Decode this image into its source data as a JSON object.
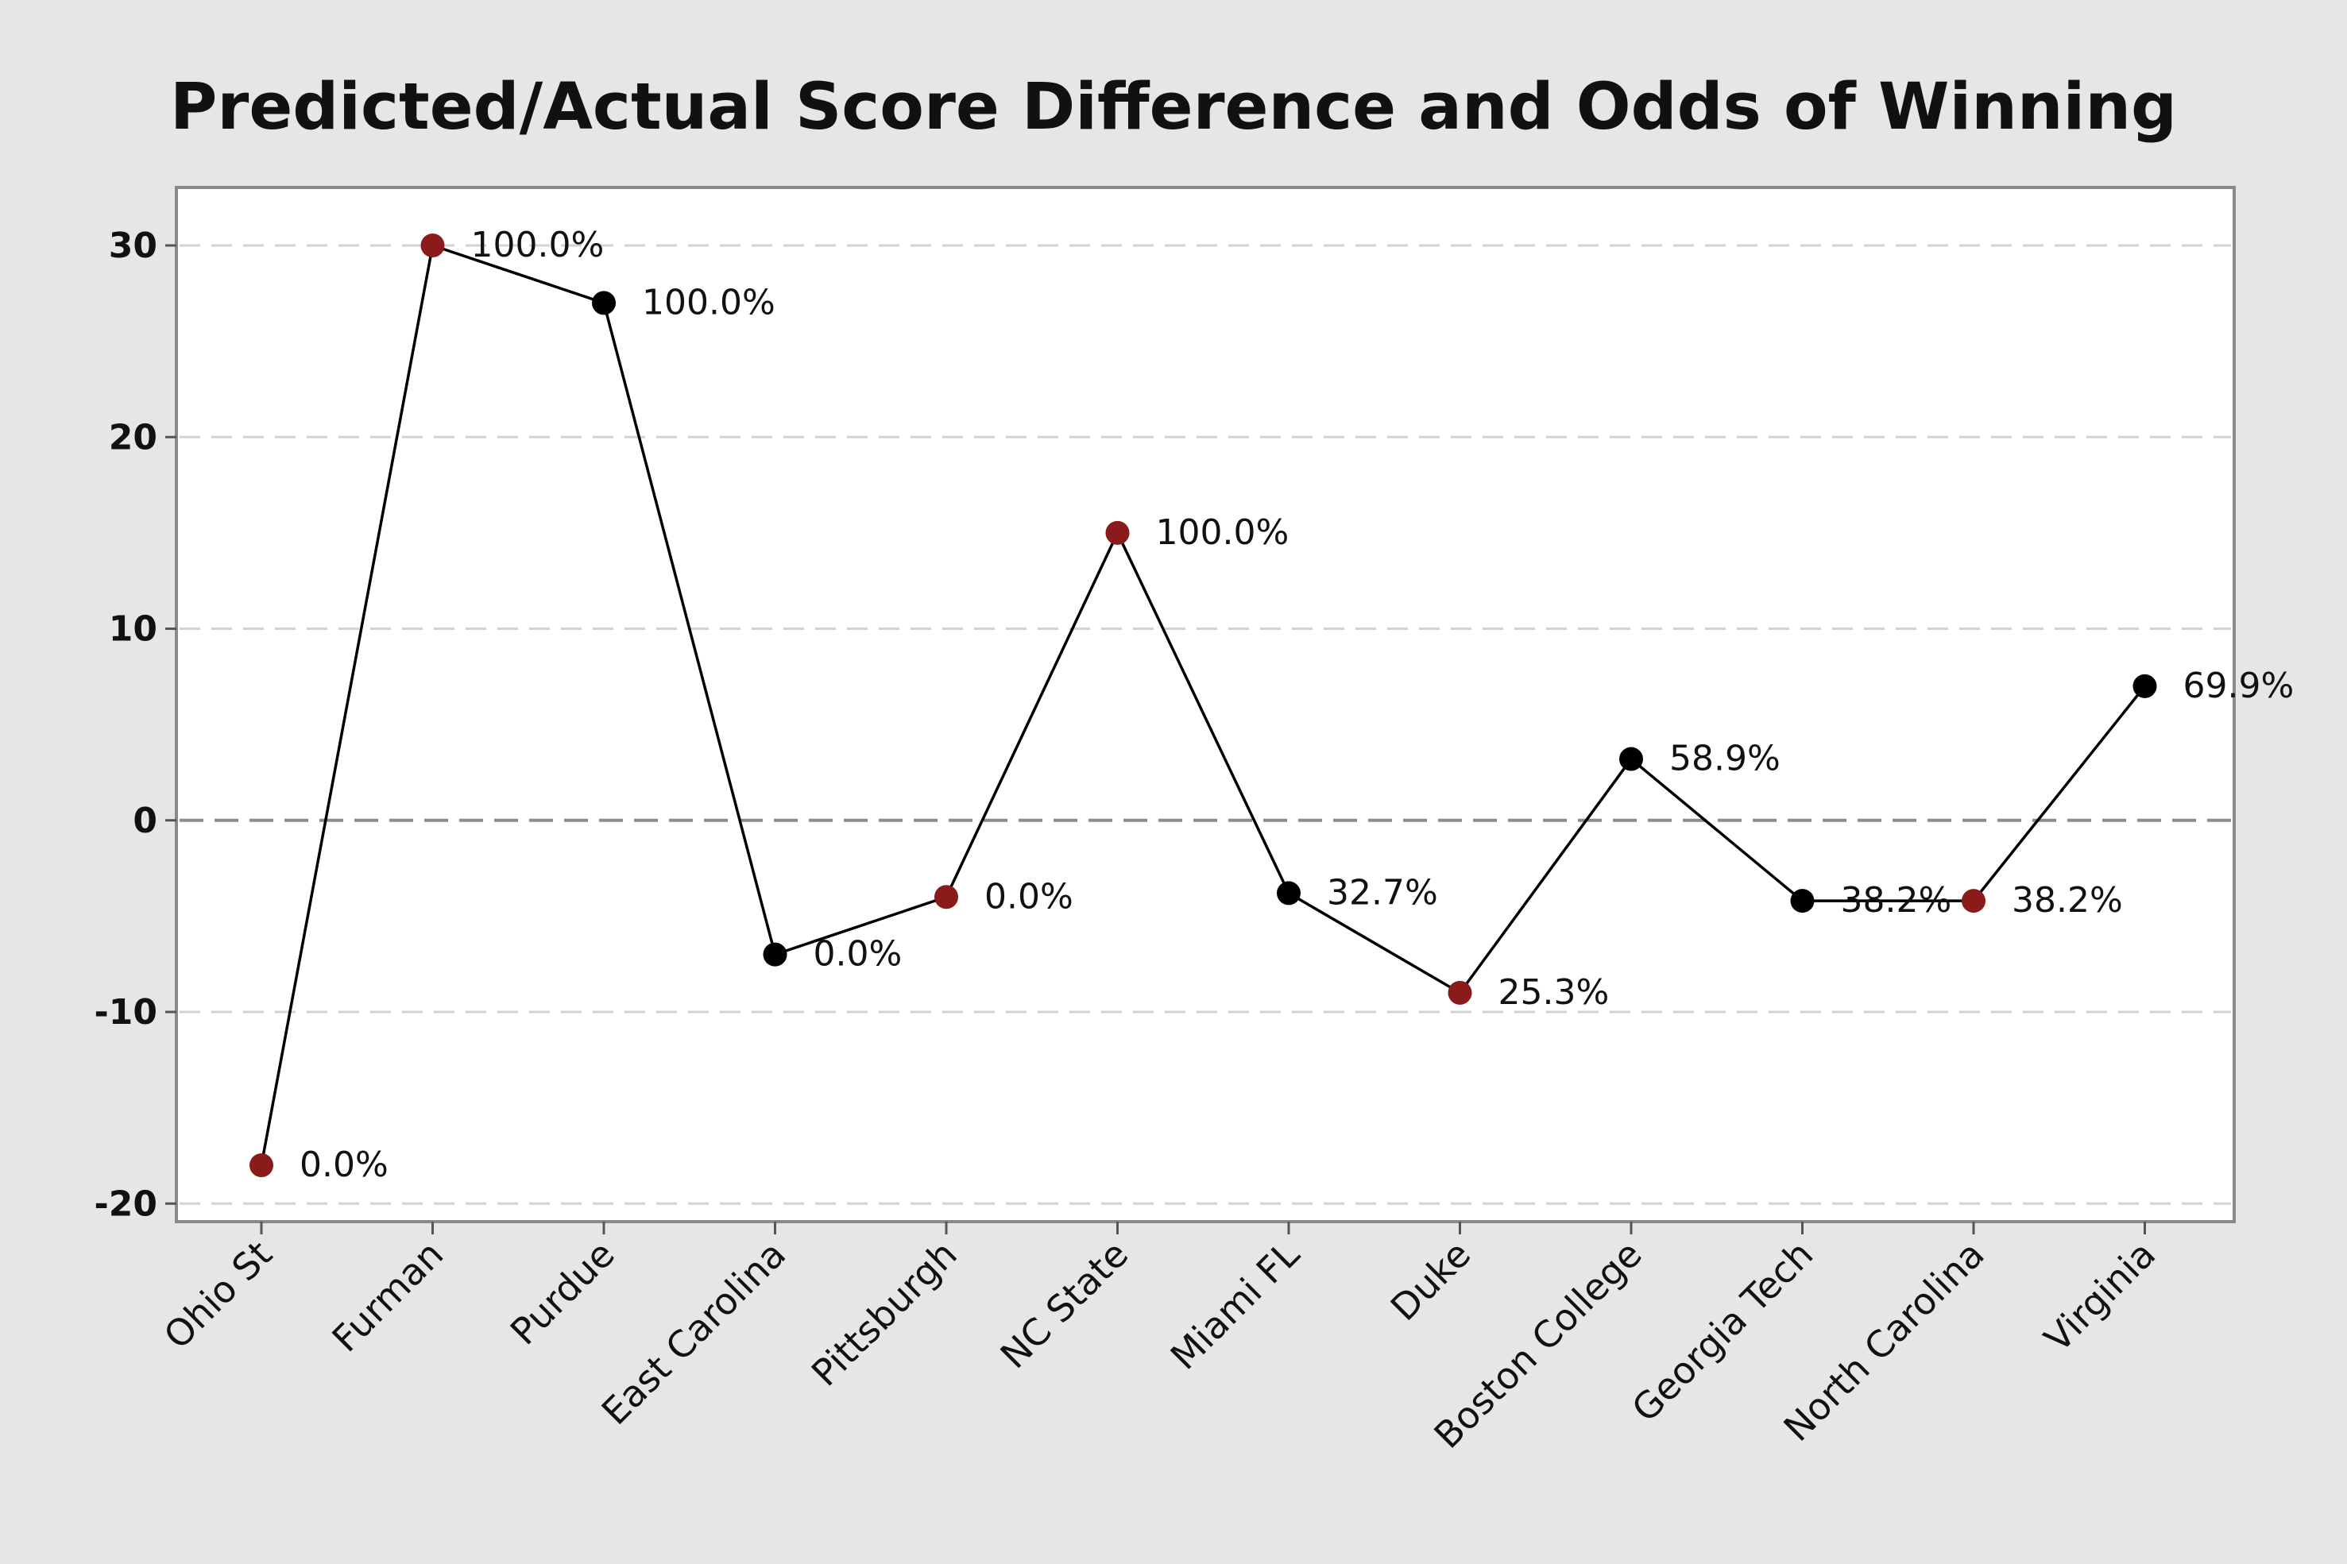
{
  "chart_data": {
    "type": "line",
    "title": "Predicted/Actual Score Difference and Odds of Winning",
    "xlabel": "",
    "ylabel": "",
    "ylim": [
      -21,
      33
    ],
    "yticks": [
      -20,
      -10,
      0,
      10,
      20,
      30
    ],
    "reference_line": 0,
    "grid": true,
    "legend": "none",
    "categories": [
      "Ohio St",
      "Furman",
      "Purdue",
      "East Carolina",
      "Pittsburgh",
      "NC State",
      "Miami FL",
      "Duke",
      "Boston College",
      "Georgia Tech",
      "North Carolina",
      "Virginia"
    ],
    "values": [
      -18,
      30,
      27,
      -7,
      -4,
      15,
      -3.8,
      -9,
      3.2,
      -4.2,
      -4.2,
      7
    ],
    "labels": [
      "0.0%",
      "100.0%",
      "100.0%",
      "0.0%",
      "0.0%",
      "100.0%",
      "32.7%",
      "25.3%",
      "58.9%",
      "38.2%",
      "38.2%",
      "69.9%"
    ],
    "marker_colors": [
      "#8b1a1a",
      "#8b1a1a",
      "#000000",
      "#000000",
      "#8b1a1a",
      "#8b1a1a",
      "#000000",
      "#8b1a1a",
      "#000000",
      "#000000",
      "#8b1a1a",
      "#000000"
    ]
  }
}
